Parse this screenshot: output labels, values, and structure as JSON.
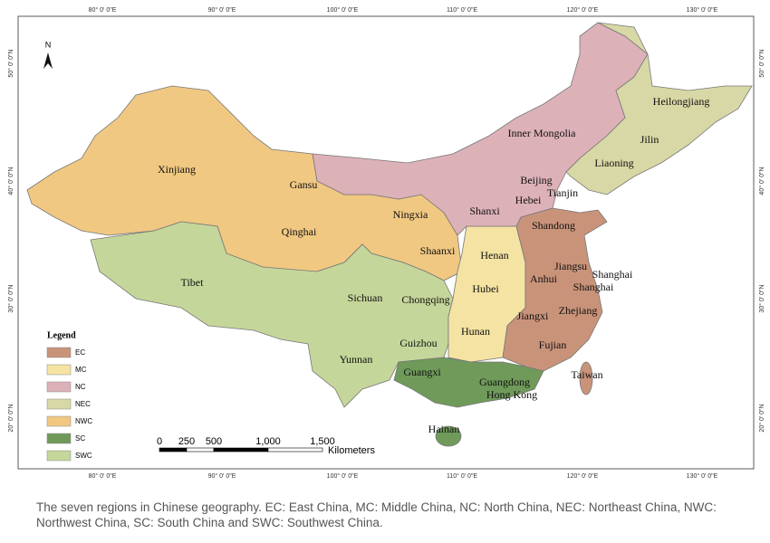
{
  "map": {
    "graticule": {
      "top": [
        "80° 0' 0\"E",
        "90° 0' 0\"E",
        "100° 0' 0\"E",
        "110° 0' 0\"E",
        "120° 0' 0\"E",
        "130° 0' 0\"E"
      ],
      "bottom": [
        "80° 0' 0\"E",
        "90° 0' 0\"E",
        "100° 0' 0\"E",
        "110° 0' 0\"E",
        "120° 0' 0\"E",
        "130° 0' 0\"E"
      ],
      "left": [
        "50° 0' 0\"N",
        "40° 0' 0\"N",
        "30° 0' 0\"N",
        "20° 0' 0\"N"
      ],
      "right": [
        "50° 0' 0\"N",
        "40° 0' 0\"N",
        "30° 0' 0\"N",
        "20° 0' 0\"N"
      ]
    },
    "north_arrow": "N",
    "provinces": [
      "Xinjiang",
      "Gansu",
      "Qinghai",
      "Ningxia",
      "Shaanxi",
      "Tibet",
      "Sichuan",
      "Chongqing",
      "Guizhou",
      "Yunnan",
      "Guangxi",
      "Guangdong",
      "Hong Kong",
      "Hainan",
      "Henan",
      "Hubei",
      "Hunan",
      "Shandong",
      "Jiangsu",
      "Shanghai",
      "Anhui",
      "Shanghai",
      "Zhejiang",
      "Jiangxi",
      "Fujian",
      "Taiwan",
      "Inner Mongolia",
      "Beijing",
      "Hebei",
      "Tianjin",
      "Shanxi",
      "Liaoning",
      "Jilin",
      "Heilongjiang"
    ],
    "legend": {
      "title": "Legend",
      "items": [
        {
          "code": "EC",
          "color": "#c9937a"
        },
        {
          "code": "MC",
          "color": "#f5e3a3"
        },
        {
          "code": "NC",
          "color": "#ddb1b8"
        },
        {
          "code": "NEC",
          "color": "#d8d8a6"
        },
        {
          "code": "NWC",
          "color": "#f0c882"
        },
        {
          "code": "SC",
          "color": "#6f9a5a"
        },
        {
          "code": "SWC",
          "color": "#c5d69a"
        }
      ]
    },
    "scale_bar": {
      "ticks": [
        "0",
        "250",
        "500",
        "1,000",
        "1,500"
      ],
      "unit": "Kilometers"
    }
  },
  "caption": "The seven regions in Chinese geography. EC: East China, MC: Middle China, NC: North China, NEC: Northeast China, NWC: Northwest China, SC: South China and SWC: Southwest China."
}
